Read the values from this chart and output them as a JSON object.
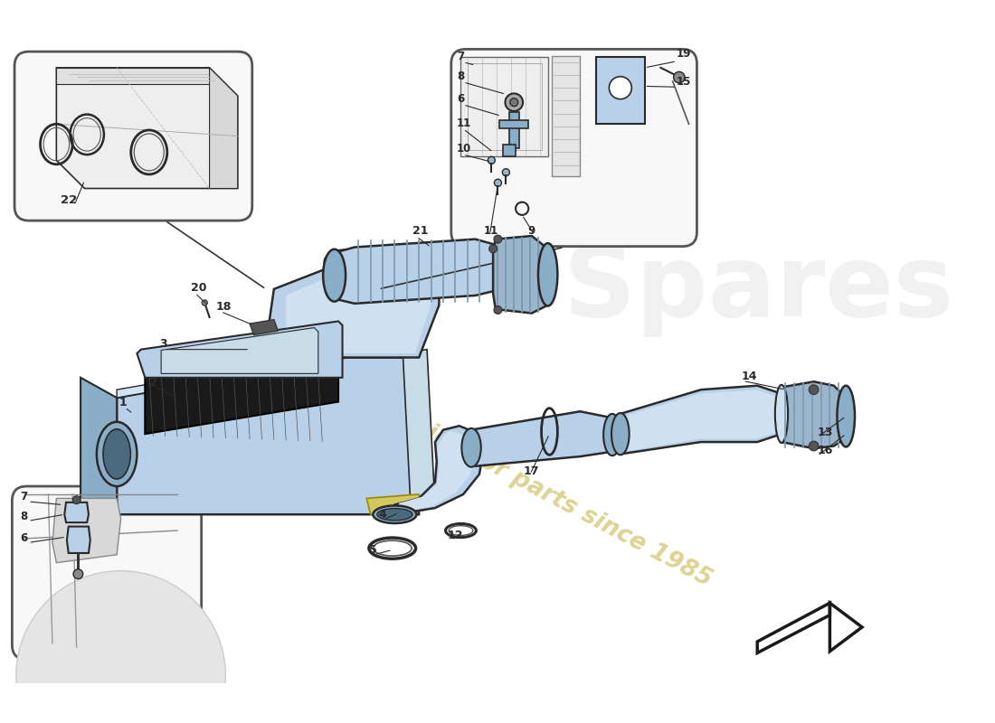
{
  "bg_color": "#ffffff",
  "watermark_text": "a passion for parts since 1985",
  "blue_light": "#b8d0e8",
  "blue_mid": "#8aaec8",
  "blue_dark": "#6090b0",
  "line_color": "#2a2a2a",
  "line_thin": "#555555",
  "inset_bg": "#f8f8f8",
  "yellow_bracket": "#d4c860",
  "wm_yellow": "#d8cc80",
  "wm_grey": "#c8c8c8"
}
